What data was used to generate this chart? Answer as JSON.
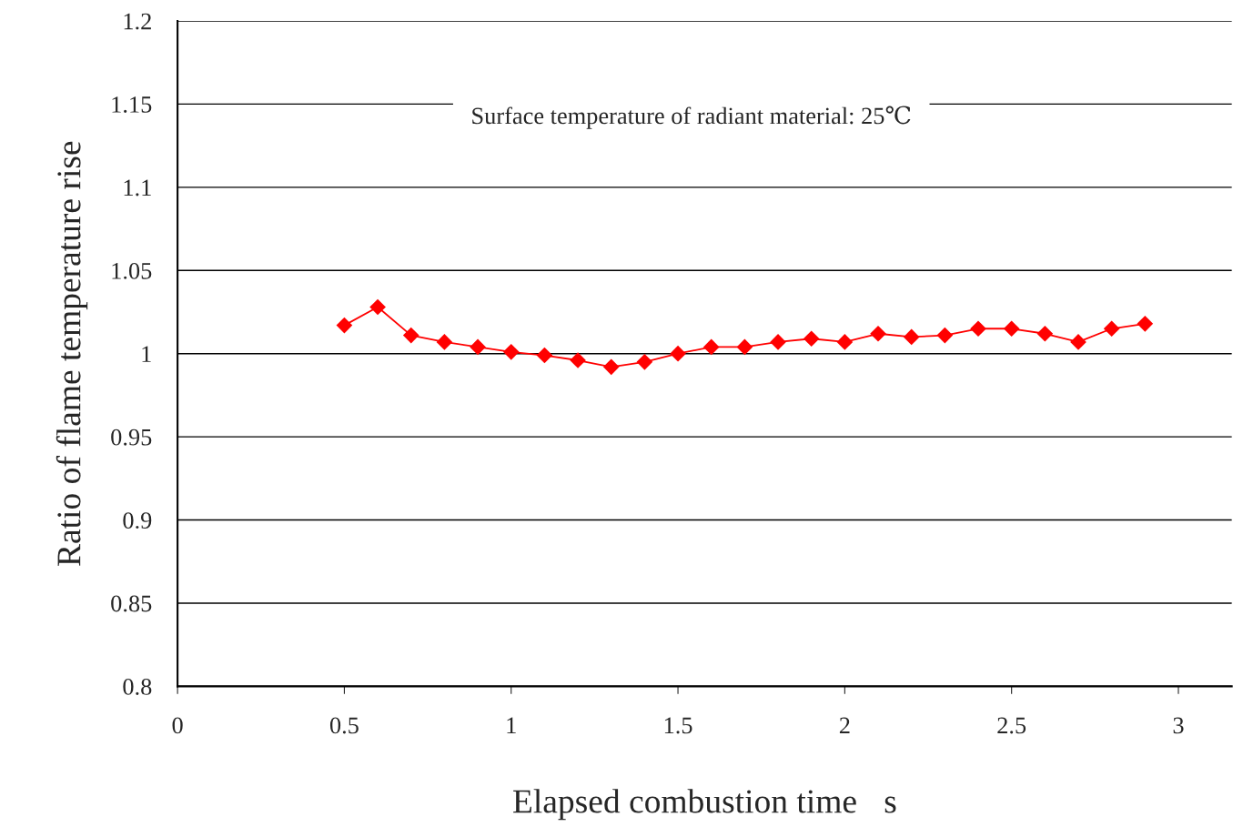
{
  "chart_data": {
    "type": "line",
    "xlabel": "Elapsed combustion time　s",
    "ylabel": "Ratio of flame temperature rise",
    "annotations": [
      "Surface temperature of radiant material: 25℃"
    ],
    "x": [
      0.5,
      0.6,
      0.7,
      0.8,
      0.9,
      1.0,
      1.1,
      1.2,
      1.3,
      1.4,
      1.5,
      1.6,
      1.7,
      1.8,
      1.9,
      2.0,
      2.1,
      2.2,
      2.3,
      2.4,
      2.5,
      2.6,
      2.7,
      2.8,
      2.9
    ],
    "series": [
      {
        "color": "#ff0000",
        "values": [
          1.017,
          1.028,
          1.011,
          1.007,
          1.004,
          1.001,
          0.999,
          0.996,
          0.992,
          0.995,
          1.0,
          1.004,
          1.004,
          1.007,
          1.009,
          1.007,
          1.012,
          1.01,
          1.011,
          1.015,
          1.015,
          1.012,
          1.007,
          1.015,
          1.018
        ]
      }
    ],
    "xlim": [
      0,
      3.16
    ],
    "xticks": [
      0,
      0.5,
      1,
      1.5,
      2,
      2.5,
      3
    ],
    "ylim": [
      0.8,
      1.2
    ],
    "yticks": [
      0.8,
      0.85,
      0.9,
      0.95,
      1,
      1.05,
      1.1,
      1.15,
      1.2
    ],
    "grid": "y",
    "marker": "diamond",
    "line_style": "solid"
  }
}
